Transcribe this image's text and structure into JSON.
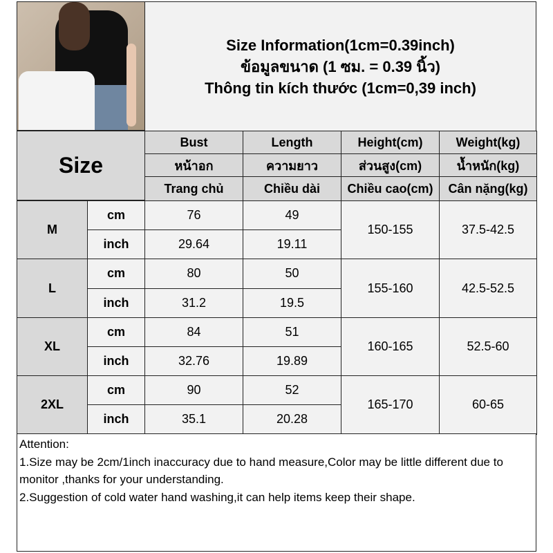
{
  "title": {
    "line1": "Size Information(1cm=0.39inch)",
    "line2": "ข้อมูลขนาด (1 ซม. = 0.39 นิ้ว)",
    "line3": "Thông tin kích thước (1cm=0,39 inch)"
  },
  "size_header": "Size",
  "columns": [
    {
      "en": "Bust",
      "th": "หน้าอก",
      "vi": "Trang chủ"
    },
    {
      "en": "Length",
      "th": "ความยาว",
      "vi": "Chiều dài"
    },
    {
      "en": "Height(cm)",
      "th": "ส่วนสูง(cm)",
      "vi": "Chiều cao(cm)"
    },
    {
      "en": "Weight(kg)",
      "th": "น้ำหนัก(kg)",
      "vi": "Cân nặng(kg)"
    }
  ],
  "rows": [
    {
      "size": "M",
      "cm_label": "cm",
      "inch_label": "inch",
      "bust_cm": "76",
      "length_cm": "49",
      "bust_inch": "29.64",
      "length_inch": "19.11",
      "height": "150-155",
      "weight": "37.5-42.5"
    },
    {
      "size": "L",
      "cm_label": "cm",
      "inch_label": "inch",
      "bust_cm": "80",
      "length_cm": "50",
      "bust_inch": "31.2",
      "length_inch": "19.5",
      "height": "155-160",
      "weight": "42.5-52.5"
    },
    {
      "size": "XL",
      "cm_label": "cm",
      "inch_label": "inch",
      "bust_cm": "84",
      "length_cm": "51",
      "bust_inch": "32.76",
      "length_inch": "19.89",
      "height": "160-165",
      "weight": "52.5-60"
    },
    {
      "size": "2XL",
      "cm_label": "cm",
      "inch_label": "inch",
      "bust_cm": "90",
      "length_cm": "52",
      "bust_inch": "35.1",
      "length_inch": "20.28",
      "height": "165-170",
      "weight": "60-65"
    }
  ],
  "notes": {
    "heading": "Attention:",
    "note1": "1.Size may be 2cm/1inch inaccuracy due to hand measure,Color may be little different due to monitor ,thanks for your understanding.",
    "note2": "2.Suggestion of cold water hand washing,it can help items keep their shape."
  }
}
